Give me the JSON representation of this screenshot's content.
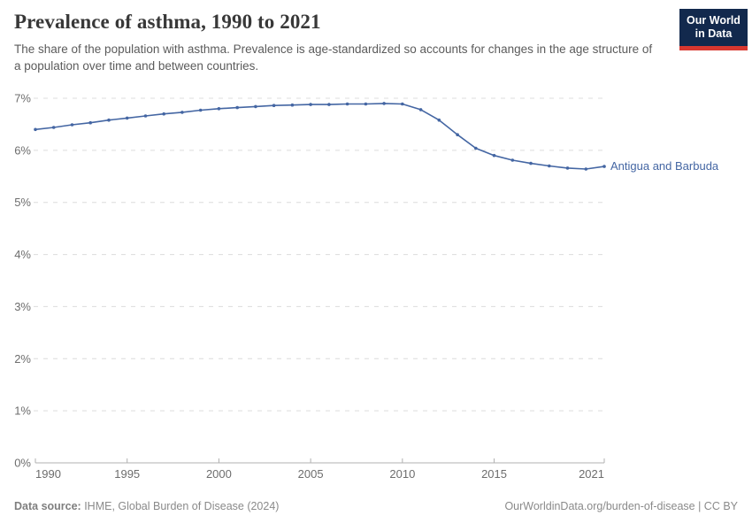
{
  "header": {
    "title": "Prevalence of asthma, 1990 to 2021",
    "subtitle": "The share of the population with asthma. Prevalence is age-standardized so accounts for changes in the age structure of a population over time and between countries.",
    "logo": {
      "line1": "Our World",
      "line2": "in Data"
    }
  },
  "chart_data": {
    "type": "line",
    "title": "Prevalence of asthma, 1990 to 2021",
    "xlabel": "",
    "ylabel": "",
    "xlim": [
      1990,
      2021
    ],
    "ylim": [
      0,
      7
    ],
    "grid": "horizontal-dashed",
    "legend": "line-end-label",
    "x_ticks": [
      {
        "value": 1990,
        "label": "1990",
        "anchor": "start"
      },
      {
        "value": 1995,
        "label": "1995",
        "anchor": "middle"
      },
      {
        "value": 2000,
        "label": "2000",
        "anchor": "middle"
      },
      {
        "value": 2005,
        "label": "2005",
        "anchor": "middle"
      },
      {
        "value": 2010,
        "label": "2010",
        "anchor": "middle"
      },
      {
        "value": 2015,
        "label": "2015",
        "anchor": "middle"
      },
      {
        "value": 2021,
        "label": "2021",
        "anchor": "end"
      }
    ],
    "y_ticks": [
      {
        "value": 0,
        "label": "0%"
      },
      {
        "value": 1,
        "label": "1%"
      },
      {
        "value": 2,
        "label": "2%"
      },
      {
        "value": 3,
        "label": "3%"
      },
      {
        "value": 4,
        "label": "4%"
      },
      {
        "value": 5,
        "label": "5%"
      },
      {
        "value": 6,
        "label": "6%"
      },
      {
        "value": 7,
        "label": "7%"
      }
    ],
    "x": [
      1990,
      1991,
      1992,
      1993,
      1994,
      1995,
      1996,
      1997,
      1998,
      1999,
      2000,
      2001,
      2002,
      2003,
      2004,
      2005,
      2006,
      2007,
      2008,
      2009,
      2010,
      2011,
      2012,
      2013,
      2014,
      2015,
      2016,
      2017,
      2018,
      2019,
      2020,
      2021
    ],
    "series": [
      {
        "name": "Antigua and Barbuda",
        "color": "#4466A3",
        "values": [
          6.4,
          6.44,
          6.49,
          6.53,
          6.58,
          6.62,
          6.66,
          6.7,
          6.73,
          6.77,
          6.8,
          6.82,
          6.84,
          6.86,
          6.87,
          6.88,
          6.88,
          6.89,
          6.89,
          6.9,
          6.89,
          6.78,
          6.58,
          6.3,
          6.04,
          5.9,
          5.81,
          5.75,
          5.7,
          5.66,
          5.64,
          5.69
        ]
      }
    ]
  },
  "footer": {
    "datasource_label": "Data source:",
    "datasource_text": " IHME, Global Burden of Disease (2024)",
    "credit": "OurWorldinData.org/burden-of-disease | CC BY"
  },
  "colors": {
    "line": "#4466A3",
    "logo_navy": "#12294d",
    "logo_red": "#d8372f",
    "grid": "#dcdcdc",
    "axis": "#b0b0b0",
    "title_text": "#383838",
    "subtitle_text": "#5b5b5b",
    "footer_text": "#8a8a8a"
  }
}
